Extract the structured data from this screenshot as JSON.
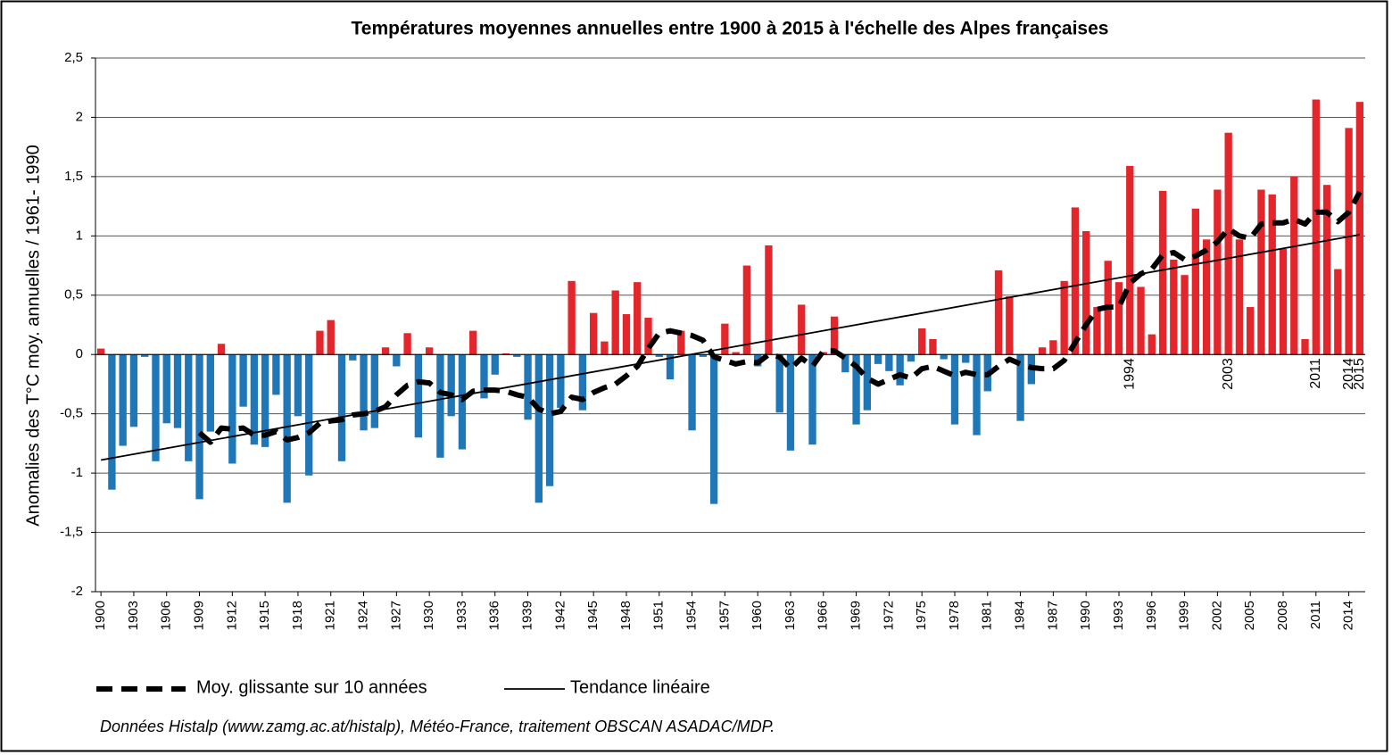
{
  "chart_data": {
    "type": "bar",
    "title": "Températures moyennes annuelles entre 1900 à 2015  à l'échelle des Alpes françaises",
    "y_label": "Anomalies des T°C moy. annuelles / 1961- 1990",
    "x": [
      1900,
      1901,
      1902,
      1903,
      1904,
      1905,
      1906,
      1907,
      1908,
      1909,
      1910,
      1911,
      1912,
      1913,
      1914,
      1915,
      1916,
      1917,
      1918,
      1919,
      1920,
      1921,
      1922,
      1923,
      1924,
      1925,
      1926,
      1927,
      1928,
      1929,
      1930,
      1931,
      1932,
      1933,
      1934,
      1935,
      1936,
      1937,
      1938,
      1939,
      1940,
      1941,
      1942,
      1943,
      1944,
      1945,
      1946,
      1947,
      1948,
      1949,
      1950,
      1951,
      1952,
      1953,
      1954,
      1955,
      1956,
      1957,
      1958,
      1959,
      1960,
      1961,
      1962,
      1963,
      1964,
      1965,
      1966,
      1967,
      1968,
      1969,
      1970,
      1971,
      1972,
      1973,
      1974,
      1975,
      1976,
      1977,
      1978,
      1979,
      1980,
      1981,
      1982,
      1983,
      1984,
      1985,
      1986,
      1987,
      1988,
      1989,
      1990,
      1991,
      1992,
      1993,
      1994,
      1995,
      1996,
      1997,
      1998,
      1999,
      2000,
      2001,
      2002,
      2003,
      2004,
      2005,
      2006,
      2007,
      2008,
      2009,
      2010,
      2011,
      2012,
      2013,
      2014,
      2015
    ],
    "values": [
      0.05,
      -1.14,
      -0.77,
      -0.61,
      -0.02,
      -0.9,
      -0.58,
      -0.62,
      -0.9,
      -1.22,
      -0.65,
      0.09,
      -0.92,
      -0.44,
      -0.76,
      -0.78,
      -0.34,
      -1.25,
      -0.52,
      -1.02,
      0.2,
      0.29,
      -0.9,
      -0.05,
      -0.64,
      -0.62,
      0.06,
      -0.1,
      0.18,
      -0.7,
      0.06,
      -0.87,
      -0.52,
      -0.8,
      0.2,
      -0.37,
      -0.17,
      0.01,
      -0.02,
      -0.55,
      -1.25,
      -1.11,
      -0.45,
      0.62,
      -0.47,
      0.35,
      0.11,
      0.54,
      0.34,
      0.61,
      0.31,
      -0.02,
      -0.21,
      0.2,
      -0.64,
      -0.02,
      -1.26,
      0.26,
      0.02,
      0.75,
      -0.1,
      0.92,
      -0.49,
      -0.81,
      0.42,
      -0.76,
      0.02,
      0.32,
      -0.15,
      -0.59,
      -0.47,
      -0.08,
      -0.14,
      -0.26,
      -0.06,
      0.22,
      0.13,
      -0.04,
      -0.59,
      -0.07,
      -0.68,
      -0.31,
      0.71,
      0.49,
      -0.56,
      -0.25,
      0.06,
      0.12,
      0.62,
      1.24,
      1.04,
      0.4,
      0.79,
      0.61,
      1.59,
      0.57,
      0.17,
      1.38,
      0.8,
      0.67,
      1.23,
      0.97,
      1.39,
      1.87,
      0.97,
      0.4,
      1.39,
      1.35,
      0.89,
      1.5,
      0.13,
      2.15,
      1.43,
      0.72,
      1.91,
      2.13
    ],
    "color_positive": "#e3262b",
    "color_negative": "#1f77b8",
    "xlim": [
      1899.5,
      2015.5
    ],
    "xticks": [
      1900,
      1903,
      1906,
      1909,
      1912,
      1915,
      1918,
      1921,
      1924,
      1927,
      1930,
      1933,
      1936,
      1939,
      1942,
      1945,
      1948,
      1951,
      1954,
      1957,
      1960,
      1963,
      1966,
      1969,
      1972,
      1975,
      1978,
      1981,
      1984,
      1987,
      1990,
      1993,
      1996,
      1999,
      2002,
      2005,
      2008,
      2011,
      2014
    ],
    "ylim": [
      -2,
      2.5
    ],
    "yticks": [
      {
        "value": -2,
        "label": "-2"
      },
      {
        "value": -1.5,
        "label": "-1,5"
      },
      -1,
      {
        "value": -0.5,
        "label": "-0,5"
      },
      0,
      {
        "value": 0.5,
        "label": "0,5"
      },
      1,
      {
        "value": 1.5,
        "label": "1,5"
      },
      2,
      {
        "value": 2.5,
        "label": "2,5"
      }
    ],
    "grid": true,
    "series": [
      {
        "name": "Moy. glissante sur 10 années",
        "type": "line",
        "dashed": true,
        "color": "#000000",
        "values": [
          null,
          null,
          null,
          null,
          null,
          null,
          null,
          null,
          null,
          -0.66,
          -0.74,
          -0.62,
          -0.63,
          -0.62,
          -0.68,
          -0.68,
          -0.65,
          -0.72,
          -0.7,
          -0.66,
          -0.58,
          -0.56,
          -0.55,
          -0.51,
          -0.5,
          -0.48,
          -0.44,
          -0.34,
          -0.26,
          -0.23,
          -0.24,
          -0.32,
          -0.34,
          -0.38,
          -0.31,
          -0.3,
          -0.3,
          -0.31,
          -0.34,
          -0.36,
          -0.46,
          -0.5,
          -0.48,
          -0.36,
          -0.38,
          -0.32,
          -0.28,
          -0.25,
          -0.18,
          -0.1,
          0.05,
          0.18,
          0.2,
          0.18,
          0.16,
          0.12,
          -0.02,
          -0.05,
          -0.08,
          -0.06,
          -0.07,
          0.0,
          -0.02,
          -0.12,
          -0.03,
          -0.1,
          0.03,
          0.03,
          -0.03,
          -0.1,
          -0.2,
          -0.25,
          -0.21,
          -0.17,
          -0.2,
          -0.12,
          -0.1,
          -0.14,
          -0.18,
          -0.15,
          -0.17,
          -0.17,
          -0.1,
          -0.04,
          -0.08,
          -0.11,
          -0.12,
          -0.12,
          -0.05,
          0.1,
          0.25,
          0.38,
          0.4,
          0.4,
          0.6,
          0.68,
          0.72,
          0.84,
          0.86,
          0.8,
          0.83,
          0.88,
          0.95,
          1.06,
          1.0,
          0.98,
          1.1,
          1.11,
          1.11,
          1.14,
          1.1,
          1.2,
          1.2,
          1.12,
          1.2,
          1.37
        ]
      },
      {
        "name": "Tendance linéaire",
        "type": "line",
        "dashed": false,
        "color": "#000000",
        "x": [
          1900,
          2015
        ],
        "values": [
          -0.89,
          1.01
        ]
      }
    ],
    "annotations": [
      {
        "text": "1994",
        "x": 1994
      },
      {
        "text": "2003",
        "x": 2003
      },
      {
        "text": "2011",
        "x": 2011
      },
      {
        "text": "2014",
        "x": 2014
      },
      {
        "text": "2015",
        "x": 2015
      }
    ],
    "source": "Données Histalp (www.zamg.ac.at/histalp), Météo-France, traitement OBSCAN ASADAC/MDP."
  }
}
